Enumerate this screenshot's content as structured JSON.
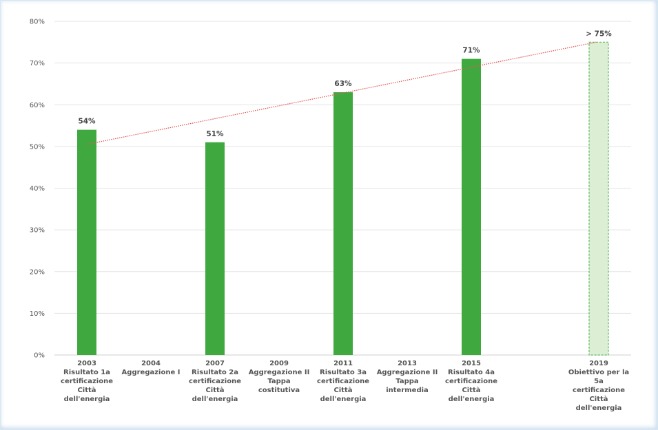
{
  "chart_data": {
    "type": "bar",
    "title": "",
    "xlabel": "",
    "ylabel": "",
    "ylim": [
      0,
      80
    ],
    "yticks": [
      0,
      10,
      20,
      30,
      40,
      50,
      60,
      70,
      80
    ],
    "ytick_suffix": "%",
    "grid": true,
    "categories": [
      {
        "year": "2003",
        "lines": [
          "Risultato 1a",
          "certificazione",
          "Città",
          "dell'energia"
        ]
      },
      {
        "year": "2004",
        "lines": [
          "Aggregazione I"
        ]
      },
      {
        "year": "2007",
        "lines": [
          "Risultato 2a",
          "certificazione",
          "Città",
          "dell'energia"
        ]
      },
      {
        "year": "2009",
        "lines": [
          "Aggregazione II",
          "Tappa",
          "costitutiva"
        ]
      },
      {
        "year": "2011",
        "lines": [
          "Risultato 3a",
          "certificazione",
          "Città",
          "dell'energia"
        ]
      },
      {
        "year": "2013",
        "lines": [
          "Aggregazione II",
          "Tappa",
          "intermedia"
        ]
      },
      {
        "year": "2015",
        "lines": [
          "Risultato 4a",
          "certificazione",
          "Città",
          "dell'energia"
        ]
      },
      {
        "year": "2019",
        "lines": [
          "Obiettivo per la",
          "5a",
          "certificazione",
          "Città",
          "dell'energia"
        ]
      }
    ],
    "values": [
      54,
      null,
      51,
      null,
      63,
      null,
      71,
      75
    ],
    "data_labels": [
      "54%",
      "",
      "51%",
      "",
      "63%",
      "",
      "71%",
      "> 75%"
    ],
    "target_index": 7,
    "trendline": {
      "from_index": 0,
      "from_value": 50.5,
      "to_index": 7,
      "to_value": 75
    },
    "colors": {
      "bar": "#3fa93f",
      "target_fill": "#dcefd5",
      "target_stroke": "#5cb85c",
      "trendline": "#e05a5a",
      "grid": "#e3e3e3"
    }
  }
}
